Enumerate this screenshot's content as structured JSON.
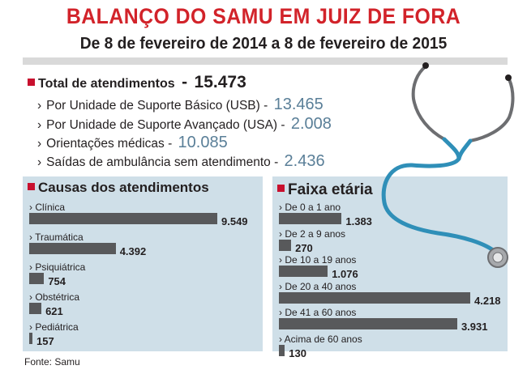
{
  "title": "BALANÇO DO SAMU EM JUIZ DE FORA",
  "subtitle": "De 8 de fevereiro de 2014 a 8 de fevereiro de 2015",
  "total": {
    "label": "Total de atendimentos",
    "sep": "-",
    "value": "15.473"
  },
  "breakdown": [
    {
      "label": "Por Unidade de Suporte Básico (USB)",
      "value": "13.465"
    },
    {
      "label": "Por Unidade de Suporte Avançado (USA)",
      "value": "2.008"
    },
    {
      "label": "Orientações médicas",
      "value": "10.085"
    },
    {
      "label": "Saídas de ambulância sem atendimento",
      "value": "2.436"
    }
  ],
  "chart_data": [
    {
      "type": "bar",
      "title": "Causas dos atendimentos",
      "categories": [
        "Clínica",
        "Traumática",
        "Psiquiátrica",
        "Obstétrica",
        "Pediátrica"
      ],
      "values": [
        9549,
        4392,
        754,
        621,
        157
      ],
      "value_labels": [
        "9.549",
        "4.392",
        "754",
        "621",
        "157"
      ],
      "orientation": "horizontal",
      "bar_color": "#58595b"
    },
    {
      "type": "bar",
      "title": "Faixa etária",
      "categories": [
        "De 0 a 1 ano",
        "De 2 a 9 anos",
        "De 10 a 19 anos",
        "De 20 a 40 anos",
        "De 41 a 60 anos",
        "Acima de 60 anos"
      ],
      "values": [
        1383,
        270,
        1076,
        4218,
        3931,
        130
      ],
      "value_labels": [
        "1.383",
        "270",
        "1.076",
        "4.218",
        "3.931",
        "130"
      ],
      "orientation": "horizontal",
      "bar_color": "#58595b"
    }
  ],
  "source": "Fonte: Samu",
  "colors": {
    "title": "#d2232a",
    "accent_square": "#c8102e",
    "value_blue": "#5a7f98",
    "panel_bg": "#cfdfe8",
    "stethoscope": "#2f8fb8"
  },
  "icons": {
    "bullet": "red-square",
    "arrow": "chevron-right",
    "illustration": "stethoscope"
  }
}
